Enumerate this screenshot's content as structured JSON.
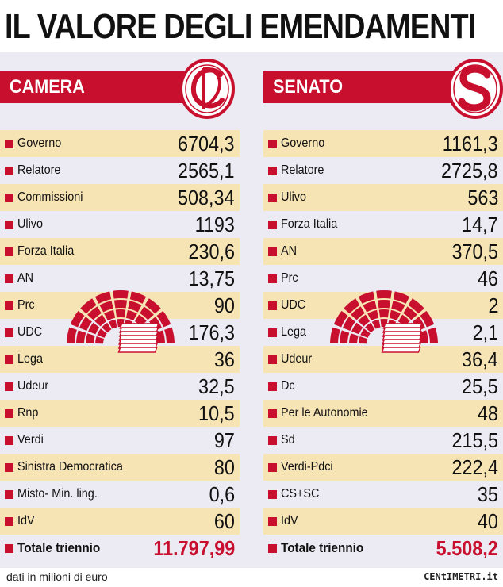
{
  "title": "IL VALORE DEGLI EMENDAMENTI",
  "colors": {
    "accent": "#c8102e",
    "band": "#ecebf3",
    "stripe": "#f6e4b5"
  },
  "camera": {
    "label": "CAMERA",
    "emblem": "camera-monogram-icon",
    "rows": [
      {
        "label": "Governo",
        "value": "6704,3"
      },
      {
        "label": "Relatore",
        "value": "2565,1"
      },
      {
        "label": "Commissioni",
        "value": "508,34"
      },
      {
        "label": "Ulivo",
        "value": "1193"
      },
      {
        "label": "Forza Italia",
        "value": "230,6"
      },
      {
        "label": "AN",
        "value": "13,75"
      },
      {
        "label": "Prc",
        "value": "90"
      },
      {
        "label": "UDC",
        "value": "176,3"
      },
      {
        "label": "Lega",
        "value": "36"
      },
      {
        "label": "Udeur",
        "value": "32,5"
      },
      {
        "label": "Rnp",
        "value": "10,5"
      },
      {
        "label": "Verdi",
        "value": "97"
      },
      {
        "label": "Sinistra Democratica",
        "value": "80"
      },
      {
        "label": "Misto- Min. ling.",
        "value": "0,6"
      },
      {
        "label": "IdV",
        "value": "60"
      }
    ],
    "total": {
      "label": "Totale triennio",
      "value": "11.797,99"
    }
  },
  "senato": {
    "label": "SENATO",
    "emblem": "senato-s-icon",
    "rows": [
      {
        "label": "Governo",
        "value": "1161,3"
      },
      {
        "label": "Relatore",
        "value": "2725,8"
      },
      {
        "label": "Ulivo",
        "value": "563"
      },
      {
        "label": "Forza Italia",
        "value": "14,7"
      },
      {
        "label": "AN",
        "value": "370,5"
      },
      {
        "label": "Prc",
        "value": "46"
      },
      {
        "label": "UDC",
        "value": "2"
      },
      {
        "label": "Lega",
        "value": "2,1"
      },
      {
        "label": "Udeur",
        "value": "36,4"
      },
      {
        "label": "Dc",
        "value": "25,5"
      },
      {
        "label": "Per le Autonomie",
        "value": "48"
      },
      {
        "label": "Sd",
        "value": "215,5"
      },
      {
        "label": "Verdi-Pdci",
        "value": "222,4"
      },
      {
        "label": "CS+SC",
        "value": "35"
      },
      {
        "label": "IdV",
        "value": "40"
      }
    ],
    "total": {
      "label": "Totale triennio",
      "value": "5.508,2"
    }
  },
  "chart_data": [
    {
      "type": "table",
      "title": "CAMERA",
      "categories": [
        "Governo",
        "Relatore",
        "Commissioni",
        "Ulivo",
        "Forza Italia",
        "AN",
        "Prc",
        "UDC",
        "Lega",
        "Udeur",
        "Rnp",
        "Verdi",
        "Sinistra Democratica",
        "Misto- Min. ling.",
        "IdV"
      ],
      "values": [
        6704.3,
        2565.1,
        508.34,
        1193,
        230.6,
        13.75,
        90,
        176.3,
        36,
        32.5,
        10.5,
        97,
        80,
        0.6,
        60
      ],
      "total": 11797.99
    },
    {
      "type": "table",
      "title": "SENATO",
      "categories": [
        "Governo",
        "Relatore",
        "Ulivo",
        "Forza Italia",
        "AN",
        "Prc",
        "UDC",
        "Lega",
        "Udeur",
        "Dc",
        "Per le Autonomie",
        "Sd",
        "Verdi-Pdci",
        "CS+SC",
        "IdV"
      ],
      "values": [
        1161.3,
        2725.8,
        563,
        14.7,
        370.5,
        46,
        2,
        2.1,
        36.4,
        25.5,
        48,
        215.5,
        222.4,
        35,
        40
      ],
      "total": 5508.2
    }
  ],
  "footer": {
    "note": "dati in milioni di euro",
    "brand": "CENtIMETRI.it"
  }
}
